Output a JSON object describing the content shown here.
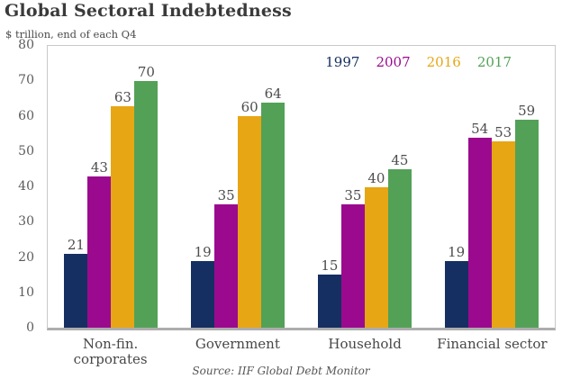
{
  "header": {
    "title": "Global Sectoral Indebtedness",
    "subtitle": "$ trillion, end of each Q4"
  },
  "source": "Source: IIF Global Debt Monitor",
  "colors": {
    "y1997": "#152f62",
    "y2007": "#9b0a8e",
    "y2016": "#e7a614",
    "y2017": "#53a157"
  },
  "chart_data": {
    "type": "bar",
    "title": "Global Sectoral Indebtedness",
    "subtitle": "$ trillion, end of each Q4",
    "categories": [
      "Non-fin.\ncorporates",
      "Government",
      "Household",
      "Financial sector"
    ],
    "series": [
      {
        "name": "1997",
        "color": "#152f62",
        "values": [
          21,
          19,
          15,
          19
        ]
      },
      {
        "name": "2007",
        "color": "#9b0a8e",
        "values": [
          43,
          35,
          35,
          54
        ]
      },
      {
        "name": "2016",
        "color": "#e7a614",
        "values": [
          63,
          60,
          40,
          53
        ]
      },
      {
        "name": "2017",
        "color": "#53a157",
        "values": [
          70,
          64,
          45,
          59
        ]
      }
    ],
    "ylim": [
      0,
      80
    ],
    "yticks": [
      0,
      10,
      20,
      30,
      40,
      50,
      60,
      70,
      80
    ],
    "grid": false,
    "legend_position": "top-right",
    "xlabel": "",
    "ylabel": "",
    "data_labels": true
  }
}
